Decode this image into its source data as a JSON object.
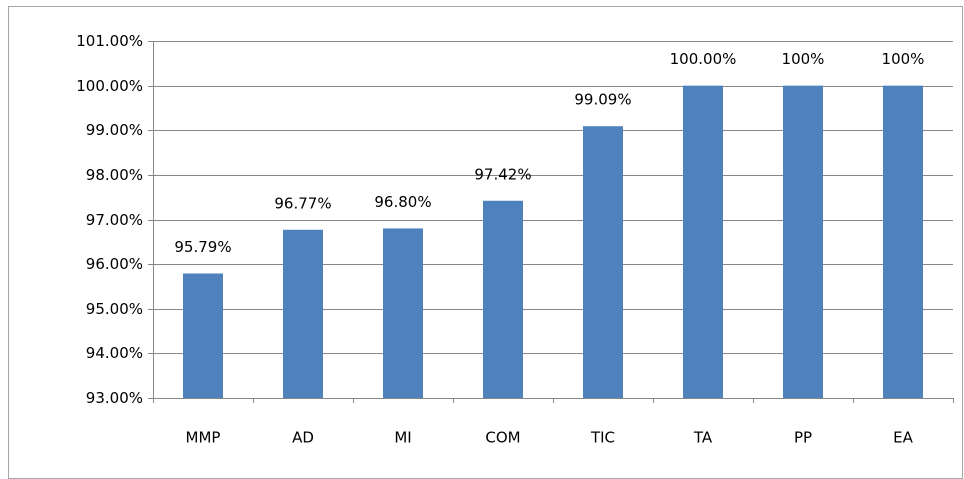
{
  "chart_data": {
    "type": "bar",
    "categories": [
      "MMP",
      "AD",
      "MI",
      "COM",
      "TIC",
      "TA",
      "PP",
      "EA"
    ],
    "values": [
      95.79,
      96.77,
      96.8,
      97.42,
      99.09,
      100,
      100,
      100
    ],
    "value_labels": [
      "95.79%",
      "96.77%",
      "96.80%",
      "97.42%",
      "99.09%",
      "100.00%",
      "100%",
      "100%"
    ],
    "color": "#4f81bd",
    "ylim": [
      93,
      101
    ],
    "yticks": [
      {
        "value": 93,
        "label": "93.00%"
      },
      {
        "value": 94,
        "label": "94.00%"
      },
      {
        "value": 95,
        "label": "95.00%"
      },
      {
        "value": 96,
        "label": "96.00%"
      },
      {
        "value": 97,
        "label": "97.00%"
      },
      {
        "value": 98,
        "label": "98.00%"
      },
      {
        "value": 99,
        "label": "99.00%"
      },
      {
        "value": 100,
        "label": "100.00%"
      },
      {
        "value": 101,
        "label": "101.00%"
      }
    ],
    "grid": true
  }
}
